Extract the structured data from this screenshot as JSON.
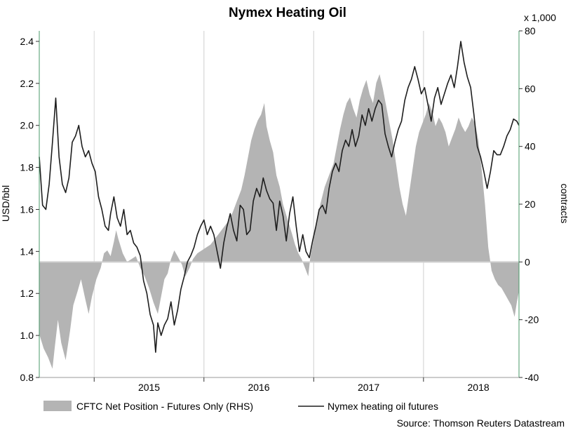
{
  "chart_data": {
    "type": "line+area",
    "title": "Nymex Heating Oil",
    "ylabel_left": "USD/bbl",
    "ylabel_right": "contracts",
    "right_multiplier": "x 1,000",
    "source": "Source: Thomson Reuters Datastream",
    "left_ylim": [
      0.8,
      2.45
    ],
    "left_ticks": [
      "0.8",
      "1.0",
      "1.2",
      "1.4",
      "1.6",
      "1.8",
      "2.0",
      "2.2",
      "2.4"
    ],
    "right_ylim": [
      -40,
      80
    ],
    "right_ticks": [
      "-40",
      "-20",
      "0",
      "20",
      "40",
      "60",
      "80"
    ],
    "xlim": [
      2014.5,
      2018.87
    ],
    "x_ticks": [
      "2015",
      "2016",
      "2017",
      "2018"
    ],
    "colors": {
      "area": "#b4b4b4",
      "line": "#1e1e1e",
      "axis_line": "#4a9a6a",
      "grid": "#d8d8d8",
      "zero": "#cfcfcf"
    },
    "series": [
      {
        "name": "CFTC Net Position - Futures Only (RHS)",
        "type": "area",
        "axis": "right",
        "points": [
          [
            2014.5,
            -25
          ],
          [
            2014.54,
            -30
          ],
          [
            2014.58,
            -33
          ],
          [
            2014.62,
            -37
          ],
          [
            2014.64,
            -30
          ],
          [
            2014.67,
            -20
          ],
          [
            2014.7,
            -28
          ],
          [
            2014.74,
            -34
          ],
          [
            2014.78,
            -24
          ],
          [
            2014.81,
            -15
          ],
          [
            2014.85,
            -10
          ],
          [
            2014.88,
            -6
          ],
          [
            2014.92,
            -13
          ],
          [
            2014.95,
            -18
          ],
          [
            2014.98,
            -12
          ],
          [
            2015.02,
            -6
          ],
          [
            2015.06,
            -2
          ],
          [
            2015.09,
            3
          ],
          [
            2015.12,
            4
          ],
          [
            2015.15,
            2
          ],
          [
            2015.18,
            7
          ],
          [
            2015.2,
            11
          ],
          [
            2015.22,
            8
          ],
          [
            2015.26,
            3
          ],
          [
            2015.3,
            0
          ],
          [
            2015.34,
            1
          ],
          [
            2015.38,
            2
          ],
          [
            2015.42,
            -2
          ],
          [
            2015.46,
            -5
          ],
          [
            2015.5,
            -9
          ],
          [
            2015.54,
            -14
          ],
          [
            2015.58,
            -18
          ],
          [
            2015.61,
            -12
          ],
          [
            2015.64,
            -6
          ],
          [
            2015.67,
            -4
          ],
          [
            2015.7,
            1
          ],
          [
            2015.73,
            4
          ],
          [
            2015.76,
            2
          ],
          [
            2015.8,
            -1
          ],
          [
            2015.83,
            -5
          ],
          [
            2015.87,
            -2
          ],
          [
            2015.9,
            1
          ],
          [
            2015.94,
            3
          ],
          [
            2015.98,
            4
          ],
          [
            2016.02,
            5
          ],
          [
            2016.06,
            6
          ],
          [
            2016.1,
            8
          ],
          [
            2016.14,
            10
          ],
          [
            2016.18,
            12
          ],
          [
            2016.22,
            14
          ],
          [
            2016.26,
            17
          ],
          [
            2016.3,
            21
          ],
          [
            2016.34,
            25
          ],
          [
            2016.37,
            30
          ],
          [
            2016.4,
            36
          ],
          [
            2016.43,
            42
          ],
          [
            2016.46,
            46
          ],
          [
            2016.49,
            49
          ],
          [
            2016.52,
            51
          ],
          [
            2016.55,
            55
          ],
          [
            2016.57,
            47
          ],
          [
            2016.6,
            42
          ],
          [
            2016.63,
            38
          ],
          [
            2016.66,
            30
          ],
          [
            2016.69,
            26
          ],
          [
            2016.72,
            20
          ],
          [
            2016.76,
            15
          ],
          [
            2016.8,
            10
          ],
          [
            2016.83,
            6
          ],
          [
            2016.86,
            3
          ],
          [
            2016.89,
            1
          ],
          [
            2016.92,
            -2
          ],
          [
            2016.95,
            -5
          ],
          [
            2016.97,
            2
          ],
          [
            2017.0,
            8
          ],
          [
            2017.03,
            14
          ],
          [
            2017.06,
            20
          ],
          [
            2017.1,
            26
          ],
          [
            2017.14,
            30
          ],
          [
            2017.18,
            34
          ],
          [
            2017.21,
            40
          ],
          [
            2017.24,
            46
          ],
          [
            2017.27,
            51
          ],
          [
            2017.3,
            55
          ],
          [
            2017.33,
            57
          ],
          [
            2017.36,
            53
          ],
          [
            2017.39,
            50
          ],
          [
            2017.42,
            56
          ],
          [
            2017.45,
            60
          ],
          [
            2017.48,
            63
          ],
          [
            2017.51,
            58
          ],
          [
            2017.54,
            55
          ],
          [
            2017.57,
            62
          ],
          [
            2017.6,
            65
          ],
          [
            2017.63,
            60
          ],
          [
            2017.66,
            54
          ],
          [
            2017.69,
            48
          ],
          [
            2017.72,
            42
          ],
          [
            2017.75,
            34
          ],
          [
            2017.78,
            26
          ],
          [
            2017.81,
            20
          ],
          [
            2017.84,
            16
          ],
          [
            2017.87,
            24
          ],
          [
            2017.9,
            32
          ],
          [
            2017.93,
            40
          ],
          [
            2017.96,
            45
          ],
          [
            2017.99,
            48
          ],
          [
            2018.02,
            51
          ],
          [
            2018.05,
            55
          ],
          [
            2018.08,
            52
          ],
          [
            2018.11,
            47
          ],
          [
            2018.14,
            50
          ],
          [
            2018.17,
            48
          ],
          [
            2018.2,
            45
          ],
          [
            2018.23,
            40
          ],
          [
            2018.26,
            43
          ],
          [
            2018.29,
            46
          ],
          [
            2018.32,
            50
          ],
          [
            2018.35,
            47
          ],
          [
            2018.38,
            45
          ],
          [
            2018.41,
            47
          ],
          [
            2018.44,
            50
          ],
          [
            2018.47,
            48
          ],
          [
            2018.5,
            42
          ],
          [
            2018.53,
            32
          ],
          [
            2018.56,
            20
          ],
          [
            2018.59,
            5
          ],
          [
            2018.62,
            -3
          ],
          [
            2018.65,
            -6
          ],
          [
            2018.68,
            -8
          ],
          [
            2018.71,
            -9
          ],
          [
            2018.74,
            -11
          ],
          [
            2018.77,
            -13
          ],
          [
            2018.8,
            -15
          ],
          [
            2018.83,
            -19
          ],
          [
            2018.85,
            -14
          ],
          [
            2018.87,
            -10
          ]
        ]
      },
      {
        "name": "Nymex heating oil futures",
        "type": "line",
        "axis": "left",
        "points": [
          [
            2014.5,
            1.85
          ],
          [
            2014.53,
            1.62
          ],
          [
            2014.56,
            1.6
          ],
          [
            2014.59,
            1.72
          ],
          [
            2014.62,
            1.92
          ],
          [
            2014.65,
            2.13
          ],
          [
            2014.68,
            1.85
          ],
          [
            2014.71,
            1.72
          ],
          [
            2014.74,
            1.68
          ],
          [
            2014.77,
            1.75
          ],
          [
            2014.8,
            1.92
          ],
          [
            2014.83,
            1.95
          ],
          [
            2014.86,
            2.0
          ],
          [
            2014.89,
            1.9
          ],
          [
            2014.92,
            1.85
          ],
          [
            2014.95,
            1.88
          ],
          [
            2014.98,
            1.82
          ],
          [
            2015.01,
            1.78
          ],
          [
            2015.04,
            1.66
          ],
          [
            2015.07,
            1.6
          ],
          [
            2015.1,
            1.52
          ],
          [
            2015.13,
            1.5
          ],
          [
            2015.15,
            1.58
          ],
          [
            2015.18,
            1.66
          ],
          [
            2015.21,
            1.56
          ],
          [
            2015.24,
            1.52
          ],
          [
            2015.27,
            1.6
          ],
          [
            2015.3,
            1.48
          ],
          [
            2015.33,
            1.5
          ],
          [
            2015.36,
            1.44
          ],
          [
            2015.39,
            1.42
          ],
          [
            2015.42,
            1.38
          ],
          [
            2015.45,
            1.26
          ],
          [
            2015.48,
            1.2
          ],
          [
            2015.51,
            1.1
          ],
          [
            2015.54,
            1.05
          ],
          [
            2015.56,
            0.92
          ],
          [
            2015.58,
            1.06
          ],
          [
            2015.61,
            1.0
          ],
          [
            2015.64,
            1.05
          ],
          [
            2015.67,
            1.08
          ],
          [
            2015.7,
            1.16
          ],
          [
            2015.73,
            1.05
          ],
          [
            2015.76,
            1.12
          ],
          [
            2015.79,
            1.22
          ],
          [
            2015.82,
            1.28
          ],
          [
            2015.85,
            1.35
          ],
          [
            2015.88,
            1.38
          ],
          [
            2015.91,
            1.42
          ],
          [
            2015.94,
            1.48
          ],
          [
            2015.97,
            1.52
          ],
          [
            2016.0,
            1.55
          ],
          [
            2016.03,
            1.48
          ],
          [
            2016.06,
            1.52
          ],
          [
            2016.09,
            1.48
          ],
          [
            2016.12,
            1.4
          ],
          [
            2016.15,
            1.32
          ],
          [
            2016.18,
            1.44
          ],
          [
            2016.21,
            1.52
          ],
          [
            2016.24,
            1.58
          ],
          [
            2016.27,
            1.5
          ],
          [
            2016.3,
            1.45
          ],
          [
            2016.33,
            1.62
          ],
          [
            2016.36,
            1.6
          ],
          [
            2016.39,
            1.48
          ],
          [
            2016.42,
            1.5
          ],
          [
            2016.45,
            1.64
          ],
          [
            2016.48,
            1.7
          ],
          [
            2016.51,
            1.66
          ],
          [
            2016.54,
            1.75
          ],
          [
            2016.57,
            1.69
          ],
          [
            2016.6,
            1.65
          ],
          [
            2016.63,
            1.63
          ],
          [
            2016.66,
            1.5
          ],
          [
            2016.69,
            1.64
          ],
          [
            2016.72,
            1.57
          ],
          [
            2016.75,
            1.45
          ],
          [
            2016.78,
            1.58
          ],
          [
            2016.81,
            1.66
          ],
          [
            2016.84,
            1.52
          ],
          [
            2016.87,
            1.4
          ],
          [
            2016.9,
            1.48
          ],
          [
            2016.93,
            1.4
          ],
          [
            2016.96,
            1.37
          ],
          [
            2016.99,
            1.45
          ],
          [
            2017.02,
            1.52
          ],
          [
            2017.05,
            1.6
          ],
          [
            2017.08,
            1.62
          ],
          [
            2017.11,
            1.58
          ],
          [
            2017.14,
            1.7
          ],
          [
            2017.17,
            1.78
          ],
          [
            2017.2,
            1.82
          ],
          [
            2017.23,
            1.78
          ],
          [
            2017.26,
            1.88
          ],
          [
            2017.29,
            1.93
          ],
          [
            2017.32,
            1.9
          ],
          [
            2017.35,
            1.98
          ],
          [
            2017.38,
            1.9
          ],
          [
            2017.41,
            1.95
          ],
          [
            2017.44,
            2.05
          ],
          [
            2017.47,
            2.0
          ],
          [
            2017.5,
            2.08
          ],
          [
            2017.53,
            2.02
          ],
          [
            2017.56,
            2.08
          ],
          [
            2017.59,
            2.12
          ],
          [
            2017.62,
            2.1
          ],
          [
            2017.65,
            1.96
          ],
          [
            2017.68,
            1.9
          ],
          [
            2017.71,
            1.85
          ],
          [
            2017.74,
            1.92
          ],
          [
            2017.77,
            1.98
          ],
          [
            2017.8,
            2.02
          ],
          [
            2017.83,
            2.12
          ],
          [
            2017.86,
            2.18
          ],
          [
            2017.89,
            2.22
          ],
          [
            2017.92,
            2.28
          ],
          [
            2017.95,
            2.22
          ],
          [
            2017.98,
            2.15
          ],
          [
            2018.01,
            2.18
          ],
          [
            2018.04,
            2.1
          ],
          [
            2018.07,
            2.02
          ],
          [
            2018.1,
            2.13
          ],
          [
            2018.13,
            2.18
          ],
          [
            2018.16,
            2.1
          ],
          [
            2018.19,
            2.15
          ],
          [
            2018.22,
            2.2
          ],
          [
            2018.25,
            2.24
          ],
          [
            2018.28,
            2.18
          ],
          [
            2018.31,
            2.28
          ],
          [
            2018.34,
            2.4
          ],
          [
            2018.37,
            2.3
          ],
          [
            2018.4,
            2.23
          ],
          [
            2018.43,
            2.18
          ],
          [
            2018.46,
            2.05
          ],
          [
            2018.49,
            1.9
          ],
          [
            2018.52,
            1.85
          ],
          [
            2018.55,
            1.78
          ],
          [
            2018.58,
            1.7
          ],
          [
            2018.61,
            1.78
          ],
          [
            2018.64,
            1.88
          ],
          [
            2018.67,
            1.86
          ],
          [
            2018.7,
            1.86
          ],
          [
            2018.73,
            1.9
          ],
          [
            2018.76,
            1.95
          ],
          [
            2018.79,
            1.98
          ],
          [
            2018.82,
            2.03
          ],
          [
            2018.85,
            2.02
          ],
          [
            2018.87,
            2.0
          ]
        ]
      }
    ],
    "legend": [
      {
        "label": "CFTC Net Position - Futures Only (RHS)",
        "type": "area"
      },
      {
        "label": "Nymex heating oil futures",
        "type": "line"
      }
    ],
    "legend_placement": "bottom"
  }
}
